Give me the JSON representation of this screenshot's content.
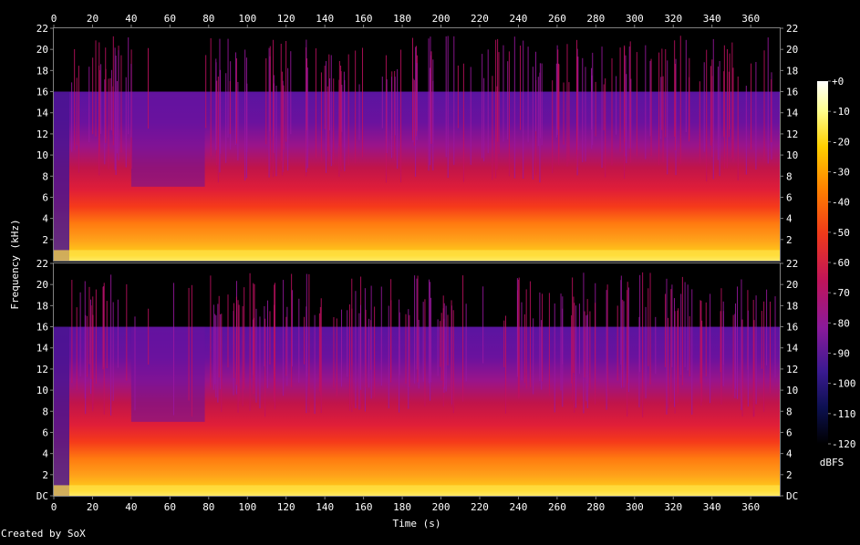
{
  "chart_data": {
    "type": "heatmap",
    "title": "",
    "xlabel": "Time (s)",
    "ylabel": "Frequency (kHz)",
    "xlim": [
      0,
      375
    ],
    "ylim": [
      0,
      22
    ],
    "x_ticks": [
      "0",
      "20",
      "40",
      "60",
      "80",
      "100",
      "120",
      "140",
      "160",
      "180",
      "200",
      "220",
      "240",
      "260",
      "280",
      "300",
      "320",
      "340",
      "360"
    ],
    "y_ticks": [
      "DC",
      "2",
      "4",
      "6",
      "8",
      "10",
      "12",
      "14",
      "16",
      "18",
      "20",
      "22"
    ],
    "channels": 2,
    "frequency_cutoff_khz": 16,
    "colorbar": {
      "label": "dBFS",
      "ticks": [
        "+0",
        "-10",
        "-20",
        "-30",
        "-40",
        "-50",
        "-60",
        "-70",
        "-80",
        "-90",
        "-100",
        "-110",
        "-120"
      ],
      "range": [
        -120,
        0
      ]
    },
    "credit": "Created by SoX"
  }
}
